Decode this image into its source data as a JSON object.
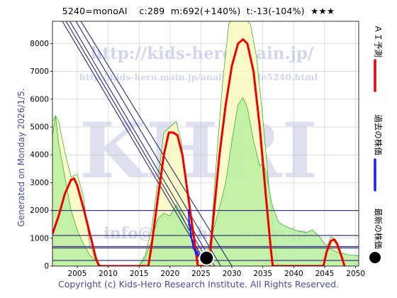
{
  "header": {
    "code": "5240=monoAI",
    "c": "c:289",
    "m": "m:692(+140%)",
    "t": "t:-13(-104%)",
    "stars": "★★★"
  },
  "generated": "Generated on Monday 2026/1/5.",
  "copyright": "Copyright (c) Kids-Hero Research Institute. All Rights Reserved.",
  "watermark": {
    "url": "http://kids-hero.main.jp/",
    "analysis_url": "http://kids-hero.main.jp/analysis/code5240.html",
    "big": "KHRI",
    "email": "info@kids-hero.main.jp"
  },
  "legend": [
    {
      "label": "ＡＩ予測",
      "color": "#ee0000",
      "marker": "line"
    },
    {
      "label": "過去の株価",
      "color": "#1a1aff",
      "marker": "line"
    },
    {
      "label": "最新の株価",
      "color": "#000000",
      "marker": "dot"
    }
  ],
  "colors": {
    "ai": "#ee0000",
    "past": "#1a1aff",
    "latest": "#000000",
    "band_yellow": "#fafac0",
    "band_green": "#b8f0a0",
    "band_line": "#22aa22",
    "trend": "#3a3a78",
    "grid": "#c8c8c8"
  },
  "chart_data": {
    "type": "line",
    "xlim": [
      2001,
      2050.5
    ],
    "ylim": [
      0,
      8800
    ],
    "x_ticks": [
      2005,
      2010,
      2015,
      2020,
      2025,
      2030,
      2035,
      2040,
      2045,
      2050
    ],
    "y_ticks": [
      0,
      1000,
      2000,
      3000,
      4000,
      5000,
      6000,
      7000,
      8000
    ],
    "grid": true,
    "legend_position": "right",
    "series": [
      {
        "name": "ＡＩ予測",
        "points": [
          [
            2001,
            1150
          ],
          [
            2002,
            1800
          ],
          [
            2003,
            2600
          ],
          [
            2004,
            3100
          ],
          [
            2004.5,
            3150
          ],
          [
            2005,
            2900
          ],
          [
            2006,
            2100
          ],
          [
            2007,
            1200
          ],
          [
            2008,
            300
          ],
          [
            2008.5,
            0
          ],
          [
            2016.5,
            0
          ],
          [
            2017,
            700
          ],
          [
            2018,
            2400
          ],
          [
            2019,
            4000
          ],
          [
            2019.8,
            4800
          ],
          [
            2020.5,
            4800
          ],
          [
            2021.2,
            4700
          ],
          [
            2022,
            4000
          ],
          [
            2023,
            2400
          ],
          [
            2024,
            800
          ],
          [
            2024.5,
            0
          ],
          [
            2026.3,
            0
          ],
          [
            2027,
            1700
          ],
          [
            2028,
            4000
          ],
          [
            2029,
            5800
          ],
          [
            2030,
            7200
          ],
          [
            2031,
            8000
          ],
          [
            2031.8,
            8150
          ],
          [
            2032.5,
            8000
          ],
          [
            2033.5,
            7000
          ],
          [
            2034.5,
            5000
          ],
          [
            2035.5,
            2500
          ],
          [
            2036.3,
            600
          ],
          [
            2036.6,
            0
          ],
          [
            2044.8,
            0
          ],
          [
            2045.3,
            500
          ],
          [
            2046,
            900
          ],
          [
            2046.5,
            960
          ],
          [
            2047,
            800
          ],
          [
            2047.8,
            300
          ],
          [
            2048.2,
            0
          ]
        ]
      },
      {
        "name": "過去の株価",
        "points": [
          [
            2023,
            2000
          ],
          [
            2023.1,
            1500
          ],
          [
            2023.3,
            1350
          ],
          [
            2023.4,
            1050
          ],
          [
            2023.6,
            900
          ],
          [
            2023.8,
            650
          ],
          [
            2024.0,
            580
          ],
          [
            2024.2,
            450
          ],
          [
            2024.4,
            500
          ],
          [
            2024.6,
            360
          ],
          [
            2024.8,
            420
          ],
          [
            2025.0,
            330
          ],
          [
            2025.2,
            300
          ]
        ]
      },
      {
        "name": "最新の株価",
        "points": [
          [
            2025.9,
            289
          ]
        ]
      }
    ],
    "band_outer": [
      [
        2001,
        5200
      ],
      [
        2001.5,
        5400
      ],
      [
        2002,
        5200
      ],
      [
        2003,
        4100
      ],
      [
        2004,
        3200
      ],
      [
        2005,
        3300
      ],
      [
        2006,
        2500
      ],
      [
        2007,
        800
      ],
      [
        2008,
        200
      ],
      [
        2009,
        0
      ],
      [
        2015,
        0
      ],
      [
        2016,
        400
      ],
      [
        2017,
        1300
      ],
      [
        2018,
        3000
      ],
      [
        2019,
        4800
      ],
      [
        2020,
        5000
      ],
      [
        2021,
        5200
      ],
      [
        2021.8,
        4500
      ],
      [
        2022.5,
        3200
      ],
      [
        2023.5,
        1300
      ],
      [
        2024.5,
        300
      ],
      [
        2025.5,
        0
      ],
      [
        2026,
        0
      ],
      [
        2026.7,
        1300
      ],
      [
        2027.5,
        3800
      ],
      [
        2028.5,
        6600
      ],
      [
        2029.5,
        8700
      ],
      [
        2030.5,
        9000
      ],
      [
        2032,
        8900
      ],
      [
        2033,
        8700
      ],
      [
        2034,
        7500
      ],
      [
        2035,
        5300
      ],
      [
        2036,
        2800
      ],
      [
        2037,
        700
      ],
      [
        2037.5,
        0
      ],
      [
        2044.3,
        0
      ],
      [
        2045,
        500
      ],
      [
        2046,
        1050
      ],
      [
        2046.8,
        950
      ],
      [
        2047.5,
        600
      ],
      [
        2048,
        0
      ]
    ],
    "band_inner": [
      [
        2001,
        4700
      ],
      [
        2001.5,
        5400
      ],
      [
        2002,
        4400
      ],
      [
        2003,
        3200
      ],
      [
        2004,
        2000
      ],
      [
        2005,
        1300
      ],
      [
        2006,
        800
      ],
      [
        2007,
        400
      ],
      [
        2008,
        200
      ],
      [
        2009,
        0
      ],
      [
        2015,
        0
      ],
      [
        2016,
        300
      ],
      [
        2017,
        900
      ],
      [
        2018,
        1700
      ],
      [
        2019,
        1900
      ],
      [
        2020,
        1800
      ],
      [
        2021,
        2200
      ],
      [
        2021.8,
        1900
      ],
      [
        2022.8,
        1400
      ],
      [
        2024,
        700
      ],
      [
        2025,
        400
      ],
      [
        2026,
        500
      ],
      [
        2027,
        1300
      ],
      [
        2028,
        2100
      ],
      [
        2029,
        3000
      ],
      [
        2030,
        4500
      ],
      [
        2031,
        5800
      ],
      [
        2031.8,
        6050
      ],
      [
        2032.5,
        5700
      ],
      [
        2033.5,
        4500
      ],
      [
        2034.5,
        3600
      ],
      [
        2035,
        3700
      ],
      [
        2035.5,
        3400
      ],
      [
        2036.5,
        2200
      ],
      [
        2037.5,
        1600
      ],
      [
        2038,
        1500
      ],
      [
        2039,
        1400
      ],
      [
        2040,
        1300
      ],
      [
        2041,
        1250
      ],
      [
        2042,
        1200
      ],
      [
        2043,
        1300
      ],
      [
        2044,
        1100
      ],
      [
        2045,
        800
      ],
      [
        2046,
        600
      ],
      [
        2047,
        500
      ],
      [
        2048,
        450
      ],
      [
        2049,
        400
      ],
      [
        2050,
        380
      ],
      [
        2050.5,
        380
      ]
    ],
    "hlines": [
      2000,
      1100,
      700,
      650,
      200
    ],
    "trend_lines": [
      [
        [
          2002.6,
          8800
        ],
        [
          2026.1,
          0
        ]
      ],
      [
        [
          2003.2,
          8800
        ],
        [
          2026.6,
          0
        ]
      ],
      [
        [
          2003.8,
          8800
        ],
        [
          2027.2,
          0
        ]
      ],
      [
        [
          2004.8,
          8800
        ],
        [
          2028.2,
          0
        ]
      ],
      [
        [
          2005.6,
          8800
        ],
        [
          2030.0,
          0
        ]
      ]
    ]
  }
}
